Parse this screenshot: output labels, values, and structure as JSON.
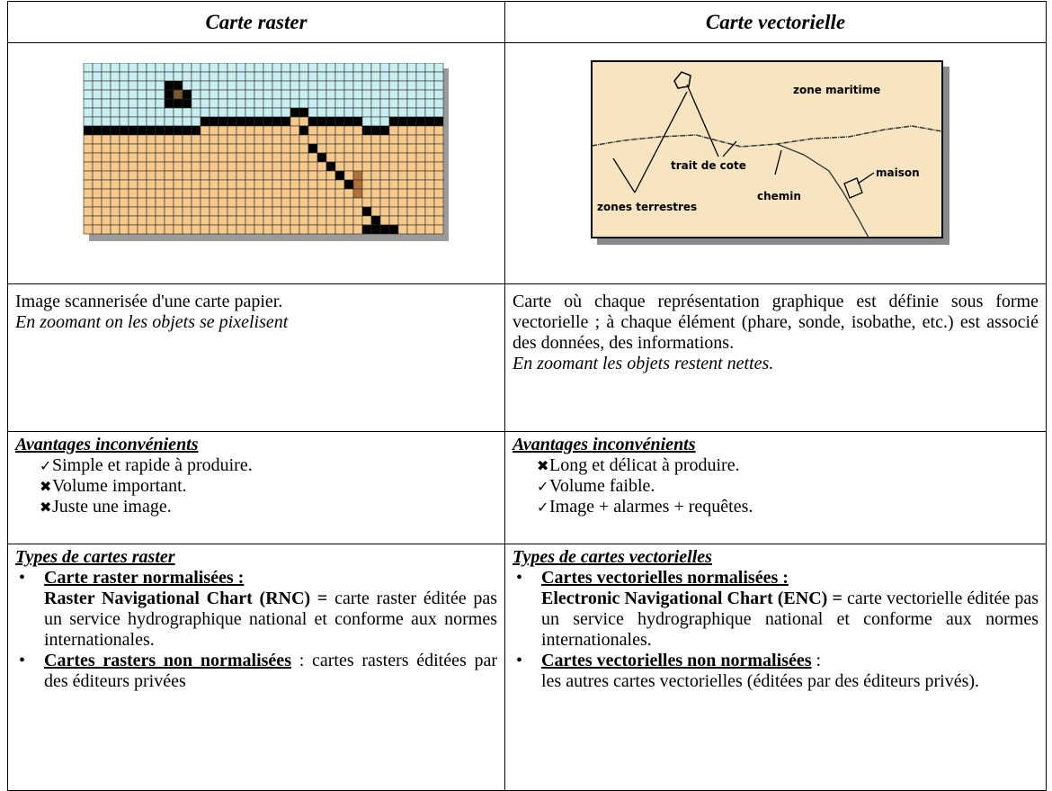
{
  "table": {
    "headers": [
      "Carte raster",
      "Carte vectorielle"
    ],
    "vector_map": {
      "sea": "zone maritime",
      "coast": "trait de cote",
      "house": "maison",
      "path": "chemin",
      "land": "zones terrestres"
    },
    "description": [
      {
        "text": "Image scannerisée d'une carte papier.",
        "note": "En zoomant on les objets se pixelisent"
      },
      {
        "text": "Carte où chaque représentation graphique est définie sous forme vectorielle ; à chaque élément (phare, sonde, isobathe, etc.) est associé des données, des informations.",
        "note": "En zoomant les objets restent nettes."
      }
    ],
    "pros_cons": [
      {
        "title": "Avantages inconvénients",
        "items": [
          "Simple et rapide à produire.",
          "Volume important.",
          "Juste une image."
        ]
      },
      {
        "title": "Avantages inconvénients",
        "items": [
          "Long et délicat à produire.",
          "Volume faible.",
          "Image + alarmes + requêtes."
        ]
      }
    ],
    "types": [
      {
        "title": "Types de cartes raster",
        "items": [
          {
            "heading": "Carte raster normalisées :",
            "term": "Raster Navigational Chart (RNC) =",
            "text": "carte raster éditée pas un service hydrographique national et conforme aux normes internationales."
          },
          {
            "heading": "Cartes rasters non normalisées",
            "after": ":",
            "text": "cartes rasters éditées par des éditeurs privées"
          }
        ]
      },
      {
        "title": "Types de cartes vectorielles",
        "items": [
          {
            "heading": "Cartes vectorielles normalisées :",
            "term": "Electronic Navigational Chart (ENC) =",
            "text": "carte vectorielle éditée pas un service hydrographique national et conforme aux normes internationales."
          },
          {
            "heading": "Cartes vectorielles non normalisées",
            "after": ":",
            "text": "les autres cartes vectorielles (éditées par des éditeurs privés)."
          }
        ]
      }
    ]
  }
}
